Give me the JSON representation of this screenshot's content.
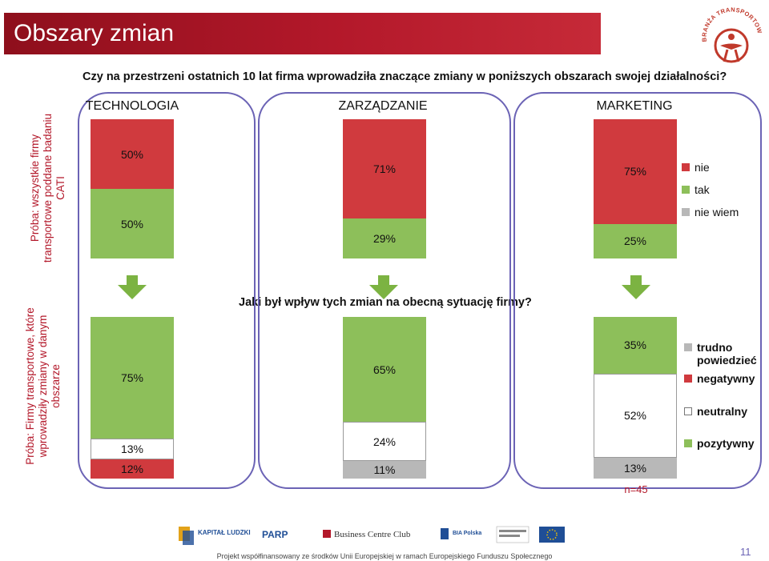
{
  "header": {
    "title": "Obszary zmian"
  },
  "brand": {
    "logo_text": "BRANŻA TRANSPORTOWA"
  },
  "questions": {
    "q1": "Czy na przestrzeni ostatnich 10 lat firma wprowadziła znaczące zmiany w poniższych obszarach swojej działalności?",
    "q2": "Jaki był wpływ tych zmian na obecną sytuację firmy?"
  },
  "samples": {
    "top": "Próba: wszystkie firmy transportowe poddane badaniu CATI",
    "bottom": "Próba: Firmy transportowe, które wprowadziły zmiany w danym obszarze"
  },
  "note": "n=45",
  "footer": {
    "funding": "Projekt współfinansowany ze środków Unii Europejskiej w ramach Europejskiego Funduszu Społecznego",
    "logos": [
      "KAPITAŁ LUDZKI",
      "PARP",
      "Business Centre Club",
      "BIA Polska"
    ],
    "page": "11"
  },
  "colors": {
    "nie": "#d03a3e",
    "tak": "#8dbf5a",
    "nie_wiem": "#b8b8b8",
    "negatywny": "#d03a3e",
    "neutralny": "#ffffff",
    "pozytywny": "#8dbf5a",
    "trudno": "#b8b8b8",
    "accent": "#b3182a",
    "panel_border": "#6b63b5"
  },
  "chart_data": [
    {
      "type": "bar",
      "stacked": true,
      "categories": [
        "TECHNOLOGIA",
        "ZARZĄDZANIE",
        "MARKETING"
      ],
      "series": [
        {
          "name": "tak",
          "values": [
            50,
            29,
            25
          ],
          "labels": [
            "50%",
            "29%",
            "25%"
          ]
        },
        {
          "name": "nie",
          "values": [
            50,
            71,
            75
          ],
          "labels": [
            "50%",
            "71%",
            "75%"
          ]
        },
        {
          "name": "nie wiem",
          "values": [
            0,
            0,
            0
          ],
          "labels": [
            "",
            "",
            ""
          ]
        }
      ],
      "legend": [
        "nie",
        "tak",
        "nie wiem"
      ],
      "legend_position": "right"
    },
    {
      "type": "bar",
      "stacked": true,
      "categories": [
        "TECHNOLOGIA",
        "ZARZĄDZANIE",
        "MARKETING"
      ],
      "series": [
        {
          "name": "negatywny",
          "values": [
            12,
            0,
            0
          ],
          "labels": [
            "12%",
            "",
            ""
          ]
        },
        {
          "name": "trudno powiedzieć",
          "values": [
            0,
            11,
            13
          ],
          "labels": [
            "",
            "11%",
            "13%"
          ]
        },
        {
          "name": "neutralny",
          "values": [
            13,
            24,
            52
          ],
          "labels": [
            "13%",
            "24%",
            "52%"
          ]
        },
        {
          "name": "pozytywny",
          "values": [
            75,
            65,
            35
          ],
          "labels": [
            "75%",
            "65%",
            "35%"
          ]
        }
      ],
      "legend": [
        "trudno powiedzieć",
        "negatywny",
        "neutralny",
        "pozytywny"
      ],
      "legend_position": "right"
    }
  ]
}
